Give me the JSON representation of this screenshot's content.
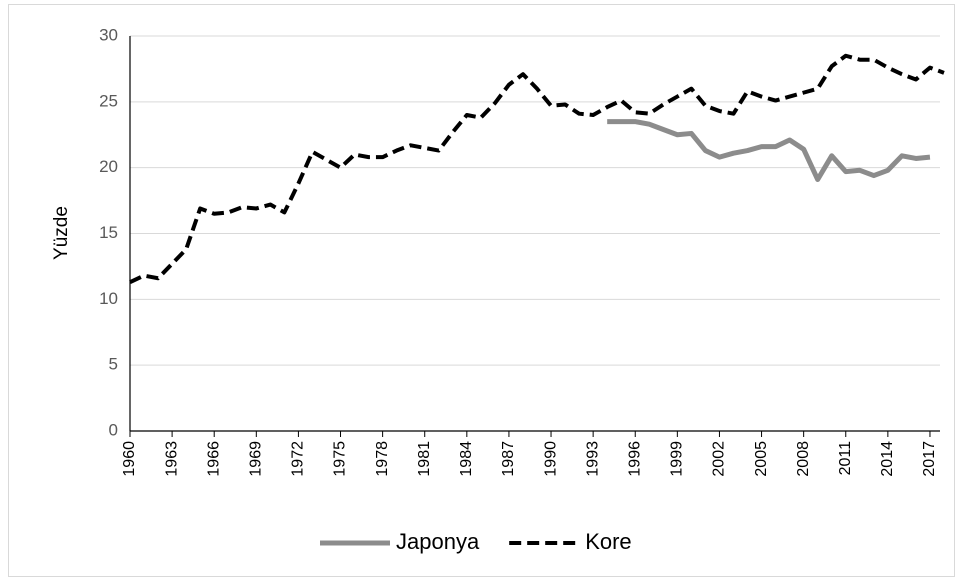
{
  "chart_data": {
    "type": "line",
    "y_label": "Yüzde",
    "x": [
      1960,
      1961,
      1962,
      1963,
      1964,
      1965,
      1966,
      1967,
      1968,
      1969,
      1970,
      1971,
      1972,
      1973,
      1974,
      1975,
      1976,
      1977,
      1978,
      1979,
      1980,
      1981,
      1982,
      1983,
      1984,
      1985,
      1986,
      1987,
      1988,
      1989,
      1990,
      1991,
      1992,
      1993,
      1994,
      1995,
      1996,
      1997,
      1998,
      1999,
      2000,
      2001,
      2002,
      2003,
      2004,
      2005,
      2006,
      2007,
      2008,
      2009,
      2010,
      2011,
      2012,
      2013,
      2014,
      2015,
      2016,
      2017,
      2018
    ],
    "series": [
      {
        "name": "Japonya",
        "color": "#8c8c8c",
        "dash": "solid",
        "values": [
          null,
          null,
          null,
          null,
          null,
          null,
          null,
          null,
          null,
          null,
          null,
          null,
          null,
          null,
          null,
          null,
          null,
          null,
          null,
          null,
          null,
          null,
          null,
          null,
          null,
          null,
          null,
          null,
          null,
          null,
          null,
          null,
          null,
          null,
          23.5,
          23.5,
          23.5,
          23.3,
          22.9,
          22.5,
          22.6,
          21.3,
          20.8,
          21.1,
          21.3,
          21.6,
          21.6,
          22.1,
          21.4,
          19.1,
          20.9,
          19.7,
          19.8,
          19.4,
          19.8,
          20.9,
          20.7,
          20.8,
          null
        ]
      },
      {
        "name": "Kore",
        "color": "#000000",
        "dash": "dashed",
        "values": [
          11.3,
          11.8,
          11.6,
          12.7,
          13.8,
          16.9,
          16.5,
          16.6,
          17.0,
          16.9,
          17.2,
          16.6,
          18.8,
          21.2,
          20.6,
          20.0,
          21.0,
          20.8,
          20.8,
          21.3,
          21.7,
          21.5,
          21.3,
          22.7,
          24.0,
          23.8,
          24.9,
          26.3,
          27.1,
          26.0,
          24.7,
          24.8,
          24.1,
          24.0,
          24.6,
          25.1,
          24.2,
          24.1,
          24.8,
          25.4,
          26.0,
          24.7,
          24.3,
          24.1,
          25.8,
          25.4,
          25.1,
          25.4,
          25.7,
          26.0,
          27.7,
          28.5,
          28.2,
          28.2,
          27.6,
          27.1,
          26.7,
          27.6,
          27.2
        ]
      }
    ],
    "xlim": [
      1960,
      2018
    ],
    "xticks": [
      1960,
      1963,
      1966,
      1969,
      1972,
      1975,
      1978,
      1981,
      1984,
      1987,
      1990,
      1993,
      1996,
      1999,
      2002,
      2005,
      2008,
      2011,
      2014,
      2017
    ],
    "ylim": [
      0,
      30
    ],
    "yticks": [
      0,
      5,
      10,
      15,
      20,
      25,
      30
    ],
    "grid": true,
    "legend": "bottom"
  }
}
